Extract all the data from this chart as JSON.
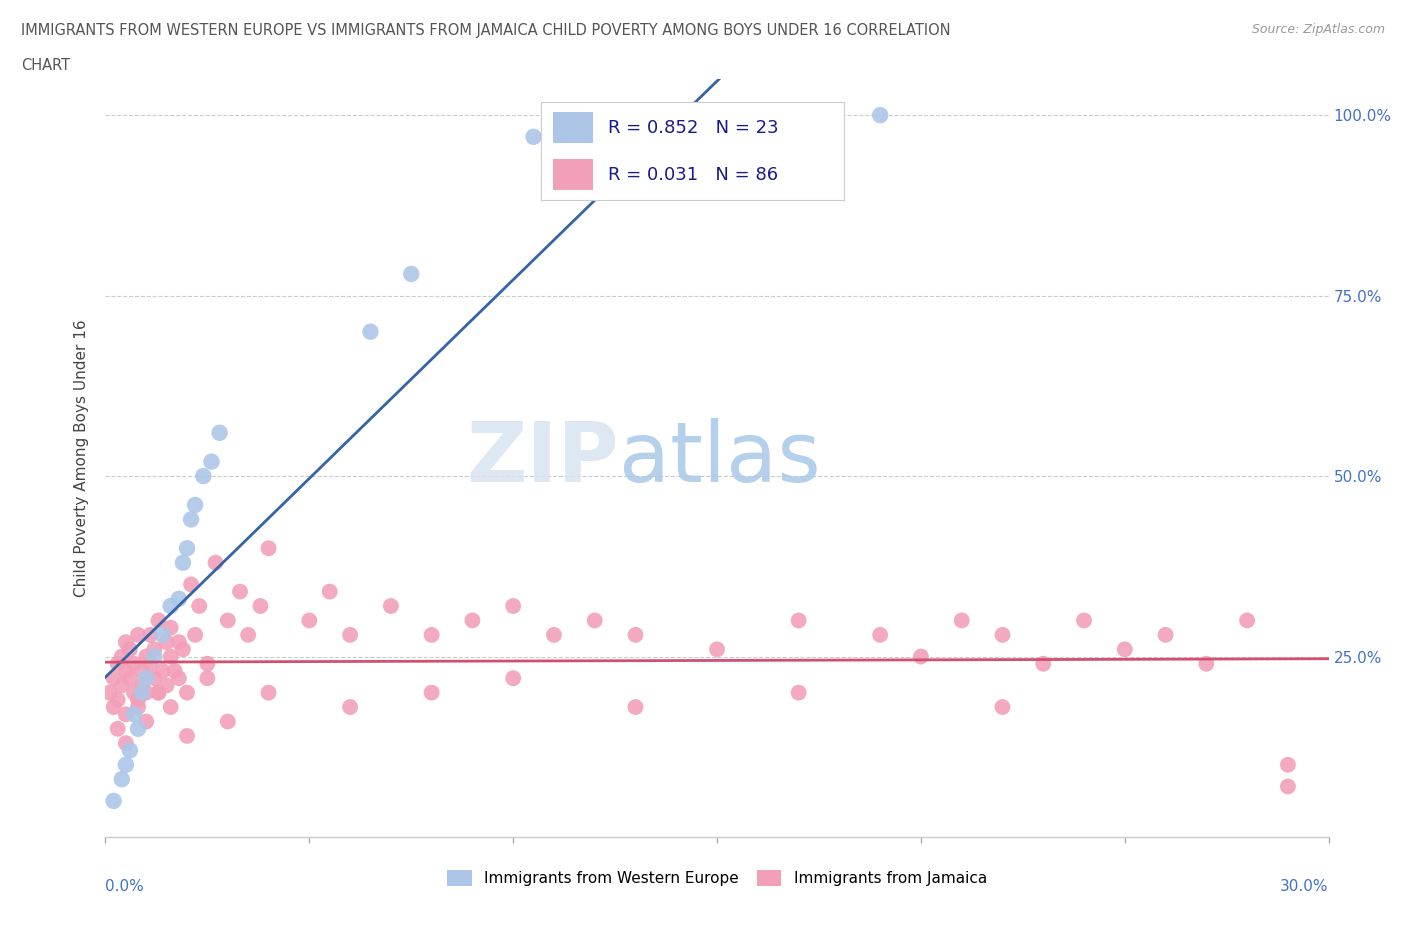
{
  "title_line1": "IMMIGRANTS FROM WESTERN EUROPE VS IMMIGRANTS FROM JAMAICA CHILD POVERTY AMONG BOYS UNDER 16 CORRELATION",
  "title_line2": "CHART",
  "source": "Source: ZipAtlas.com",
  "ylabel": "Child Poverty Among Boys Under 16",
  "blue_label": "Immigrants from Western Europe",
  "pink_label": "Immigrants from Jamaica",
  "blue_R": "0.852",
  "blue_N": "23",
  "pink_R": "0.031",
  "pink_N": "86",
  "watermark_zip": "ZIP",
  "watermark_atlas": "atlas",
  "blue_color": "#adc6e8",
  "blue_line_color": "#3464a8",
  "pink_color": "#f2a0b8",
  "pink_line_color": "#d05070",
  "title_color": "#555555",
  "source_color": "#999999",
  "axis_label_color": "#4472c4",
  "legend_R_color": "#1a1a8c",
  "background_color": "#ffffff",
  "blue_x": [
    0.002,
    0.004,
    0.005,
    0.006,
    0.007,
    0.008,
    0.009,
    0.01,
    0.012,
    0.014,
    0.016,
    0.018,
    0.019,
    0.02,
    0.021,
    0.022,
    0.024,
    0.026,
    0.028,
    0.065,
    0.075,
    0.105,
    0.19
  ],
  "blue_y": [
    0.05,
    0.08,
    0.1,
    0.12,
    0.17,
    0.15,
    0.2,
    0.22,
    0.25,
    0.28,
    0.32,
    0.33,
    0.38,
    0.4,
    0.44,
    0.46,
    0.5,
    0.52,
    0.56,
    0.7,
    0.78,
    0.97,
    1.0
  ],
  "pink_x": [
    0.001,
    0.002,
    0.002,
    0.003,
    0.003,
    0.004,
    0.004,
    0.005,
    0.005,
    0.005,
    0.006,
    0.006,
    0.007,
    0.007,
    0.008,
    0.008,
    0.009,
    0.009,
    0.01,
    0.01,
    0.011,
    0.011,
    0.012,
    0.012,
    0.013,
    0.013,
    0.014,
    0.015,
    0.015,
    0.016,
    0.016,
    0.017,
    0.018,
    0.018,
    0.019,
    0.02,
    0.021,
    0.022,
    0.023,
    0.025,
    0.027,
    0.03,
    0.033,
    0.035,
    0.038,
    0.04,
    0.05,
    0.055,
    0.06,
    0.07,
    0.08,
    0.09,
    0.1,
    0.11,
    0.12,
    0.13,
    0.15,
    0.17,
    0.19,
    0.2,
    0.21,
    0.22,
    0.23,
    0.24,
    0.25,
    0.26,
    0.27,
    0.28,
    0.29,
    0.003,
    0.005,
    0.008,
    0.01,
    0.013,
    0.016,
    0.02,
    0.025,
    0.03,
    0.04,
    0.06,
    0.08,
    0.1,
    0.13,
    0.17,
    0.22,
    0.29
  ],
  "pink_y": [
    0.2,
    0.18,
    0.22,
    0.19,
    0.24,
    0.21,
    0.25,
    0.17,
    0.23,
    0.27,
    0.22,
    0.26,
    0.2,
    0.24,
    0.19,
    0.28,
    0.23,
    0.21,
    0.25,
    0.2,
    0.24,
    0.28,
    0.22,
    0.26,
    0.2,
    0.3,
    0.23,
    0.27,
    0.21,
    0.25,
    0.29,
    0.23,
    0.27,
    0.22,
    0.26,
    0.2,
    0.35,
    0.28,
    0.32,
    0.24,
    0.38,
    0.3,
    0.34,
    0.28,
    0.32,
    0.4,
    0.3,
    0.34,
    0.28,
    0.32,
    0.28,
    0.3,
    0.32,
    0.28,
    0.3,
    0.28,
    0.26,
    0.3,
    0.28,
    0.25,
    0.3,
    0.28,
    0.24,
    0.3,
    0.26,
    0.28,
    0.24,
    0.3,
    0.1,
    0.15,
    0.13,
    0.18,
    0.16,
    0.2,
    0.18,
    0.14,
    0.22,
    0.16,
    0.2,
    0.18,
    0.2,
    0.22,
    0.18,
    0.2,
    0.18,
    0.07
  ]
}
